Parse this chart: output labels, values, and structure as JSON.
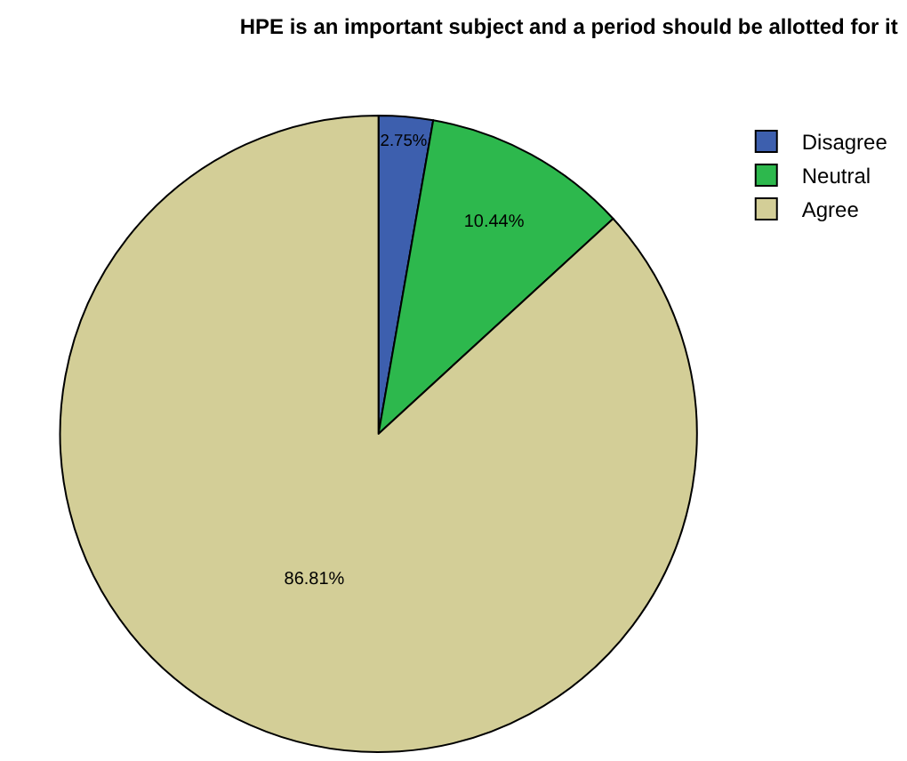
{
  "chart_data": {
    "type": "pie",
    "title": "HPE is an important subject and a period should be allotted for it",
    "categories": [
      "Disagree",
      "Neutral",
      "Agree"
    ],
    "values": [
      2.75,
      10.44,
      86.81
    ],
    "value_labels": [
      "2.75%",
      "10.44%",
      "86.81%"
    ],
    "colors": [
      "#3d5fae",
      "#2db84d",
      "#d3ce97"
    ],
    "legend": "top right"
  }
}
